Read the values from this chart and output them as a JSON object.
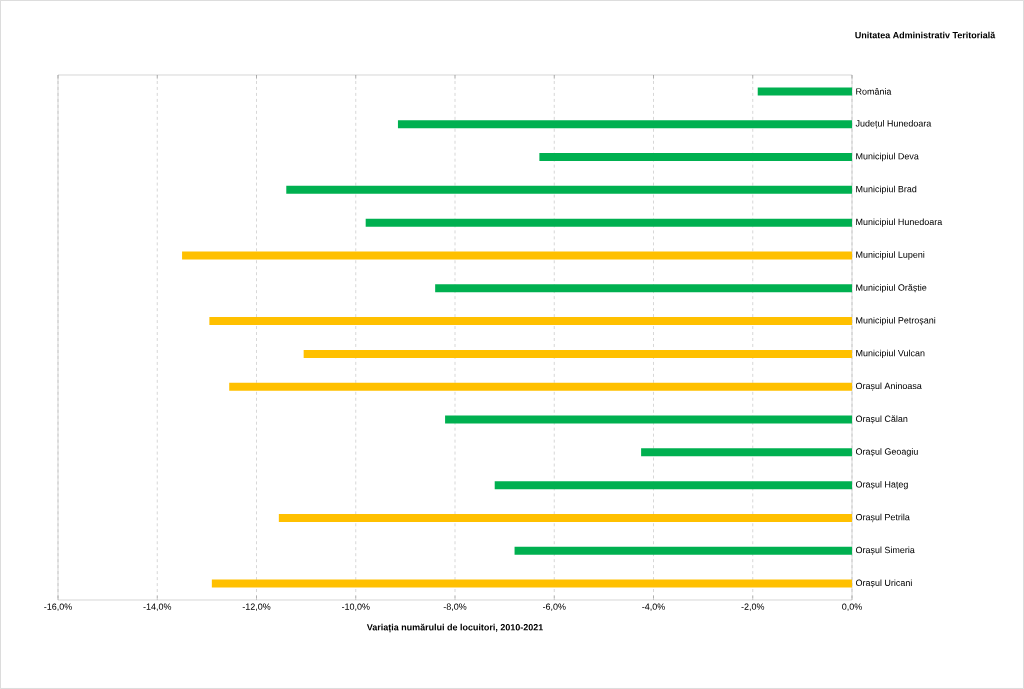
{
  "chart_data": {
    "type": "bar",
    "orientation": "horizontal",
    "xlabel": "Variația numărului de locuitori, 2010-2021",
    "ylabel": "Unitatea Administrativ Teritorială",
    "categories": [
      "România",
      "Județul Hunedoara",
      "Municipiul Deva",
      "Municipiul Brad",
      "Municipiul Hunedoara",
      "Municipiul Lupeni",
      "Municipiul Orăștie",
      "Municipiul Petroșani",
      "Municipiul Vulcan",
      "Orașul Aninoasa",
      "Orașul Călan",
      "Orașul Geoagiu",
      "Orașul Hațeg",
      "Orașul Petrila",
      "Orașul Simeria",
      "Orașul Uricani"
    ],
    "values": [
      -1.9,
      -9.15,
      -6.3,
      -11.4,
      -9.8,
      -13.5,
      -8.4,
      -12.95,
      -11.05,
      -12.55,
      -8.2,
      -4.25,
      -7.2,
      -11.55,
      -6.8,
      -12.9
    ],
    "colors": [
      "#00b050",
      "#00b050",
      "#00b050",
      "#00b050",
      "#00b050",
      "#ffc000",
      "#00b050",
      "#ffc000",
      "#ffc000",
      "#ffc000",
      "#00b050",
      "#00b050",
      "#00b050",
      "#ffc000",
      "#00b050",
      "#ffc000"
    ],
    "xlim": [
      -16,
      0
    ],
    "xticks": [
      {
        "value": -16,
        "label": "-16,0%"
      },
      {
        "value": -14,
        "label": "-14,0%"
      },
      {
        "value": -12,
        "label": "-12,0%"
      },
      {
        "value": -10,
        "label": "-10,0%"
      },
      {
        "value": -8,
        "label": "-8,0%"
      },
      {
        "value": -6,
        "label": "-6,0%"
      },
      {
        "value": -4,
        "label": "-4,0%"
      },
      {
        "value": -2,
        "label": "-2,0%"
      },
      {
        "value": 0,
        "label": "0,0%"
      }
    ],
    "grid": "x"
  }
}
